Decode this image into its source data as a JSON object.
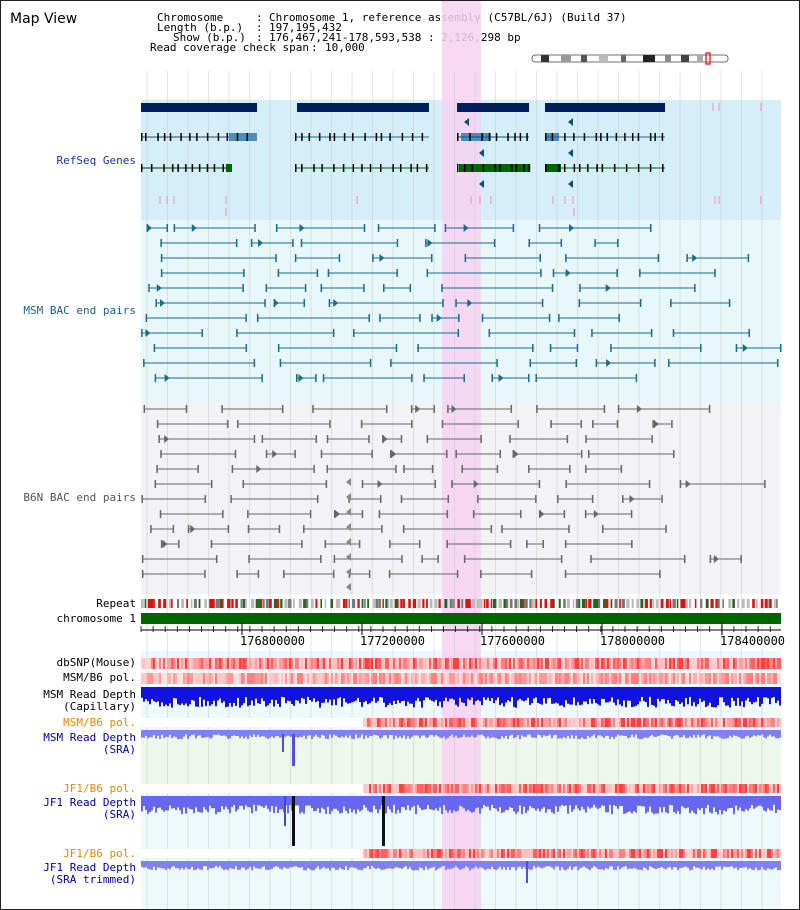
{
  "page_title": "Map View",
  "info": {
    "chromosome_label": "Chromosome",
    "chromosome_value": "Chromosome 1, reference assembly (C57BL/6J) (Build 37)",
    "length_label": "Length (b.p.)",
    "length_value": "197,195,432",
    "show_label": "Show (b.p.)",
    "show_value": "176,467,241-178,593,538 : 2,126,298 bp",
    "coverage_label": "Read coverage check span",
    "coverage_value": "10,000"
  },
  "tracks": {
    "refseq": "RefSeq Genes",
    "msm_bac": "MSM BAC end pairs",
    "b6n_bac": "B6N BAC end pairs",
    "repeat": "Repeat",
    "chromosome": "chromosome 1",
    "dbsnp": "dbSNP(Mouse)",
    "msm_b6_pol_1": "MSM/B6 pol.",
    "msm_depth_cap_1": "MSM Read Depth",
    "msm_depth_cap_2": "(Capillary)",
    "msm_b6_pol_2": "MSM/B6 pol.",
    "msm_depth_sra_1": "MSM Read Depth",
    "msm_depth_sra_2": "(SRA)",
    "jf1_pol_1": "JF1/B6 pol.",
    "jf1_depth_sra_1": "JF1 Read Depth",
    "jf1_depth_sra_2": "(SRA)",
    "jf1_pol_2": "JF1/B6 pol.",
    "jf1_depth_trim_1": "JF1 Read Depth",
    "jf1_depth_trim_2": "(SRA trimmed)"
  },
  "axis_ticks": [
    "176800000",
    "177200000",
    "177600000",
    "178000000",
    "178400000"
  ],
  "colors": {
    "refseq_bg": "#d6eef9",
    "bac_bg": "#e8f7f9",
    "b6n_bg": "#f3f3f7",
    "highlight": "#f7d2f2",
    "chromosome_bar": "#006400",
    "gene_dark": "#001f5c",
    "gene_mid": "#4a8db8",
    "gene_green": "#006400",
    "msm_bac": "#1a6a8a",
    "b6n_bac": "#666666",
    "depth_blue": "#1111e0",
    "depth_light": "#8080f0"
  }
}
